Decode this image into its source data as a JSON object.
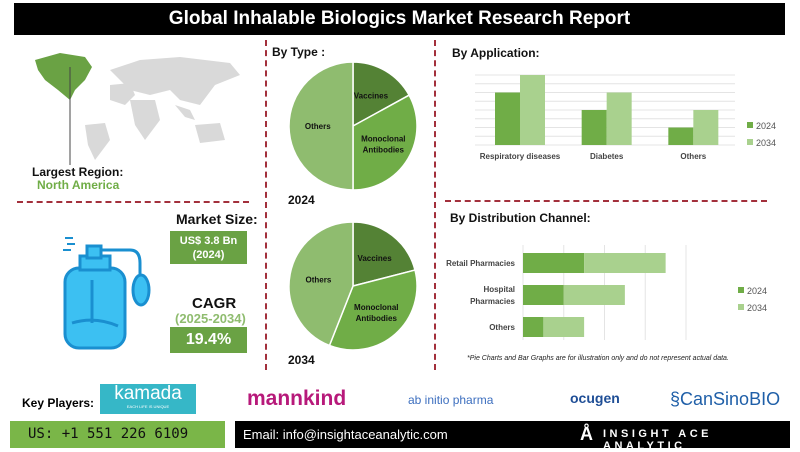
{
  "title": "Global Inhalable Biologics Market Research Report",
  "region": {
    "label": "Largest Region:",
    "value": "North America"
  },
  "market_size": {
    "label": "Market Size:",
    "value": "US$ 3.8 Bn",
    "year": "(2024)"
  },
  "cagr": {
    "label": "CAGR",
    "period": "(2025-2034)",
    "value": "19.4%"
  },
  "colors": {
    "dark": "#548235",
    "mid": "#70ad47",
    "light": "#a9d18e",
    "others_pie": "#8fbc6f",
    "accent_dash": "#a3303c",
    "map_highlight": "#6aa244",
    "icon_blue": "#1aa3e8"
  },
  "chart_data": [
    {
      "type": "pie",
      "title": "By Type :",
      "caption": "2024",
      "slices": [
        {
          "label": "Vaccines",
          "value": 17
        },
        {
          "label": "Monoclonal Antibodies",
          "value": 33
        },
        {
          "label": "Others",
          "value": 50
        }
      ]
    },
    {
      "type": "pie",
      "caption": "2034",
      "slices": [
        {
          "label": "Vaccines",
          "value": 21
        },
        {
          "label": "Monoclonal Antibodies",
          "value": 35
        },
        {
          "label": "Others",
          "value": 44
        }
      ]
    },
    {
      "type": "bar",
      "title": "By Application:",
      "categories": [
        "Respiratory diseases",
        "Diabetes",
        "Others"
      ],
      "series": [
        {
          "name": "2024",
          "values": [
            6,
            4,
            2
          ]
        },
        {
          "name": "2034",
          "values": [
            8,
            6,
            4
          ]
        }
      ],
      "ylim": [
        0,
        8
      ],
      "grid": true,
      "legend": "right"
    },
    {
      "type": "bar",
      "orientation": "horizontal",
      "stacked": true,
      "title": "By Distribution Channel:",
      "categories": [
        "Retail Pharmacies",
        "Hospital Pharmacies",
        "Others"
      ],
      "series": [
        {
          "name": "2024",
          "values": [
            1.5,
            1,
            0.5
          ]
        },
        {
          "name": "2034",
          "values": [
            2,
            1.5,
            1
          ]
        }
      ],
      "xlim": [
        0,
        4
      ],
      "grid": true,
      "legend": "right"
    }
  ],
  "disclaimer": "*Pie Charts and Bar Graphs are for illustration only and do not represent actual data.",
  "key_players": {
    "label": "Key Players:",
    "logos": [
      {
        "name": "kamada",
        "tagline": "EACH LIFE IS UNIQUE"
      },
      {
        "name": "mannkind"
      },
      {
        "name": "ab initio pharma"
      },
      {
        "name": "ocugen"
      },
      {
        "name": "CanSinoBIO"
      }
    ]
  },
  "footer": {
    "phone": "US: +1 551 226 6109",
    "email": "Email: info@insightaceanalytic.com",
    "brand": "INSIGHT ACE ANALYTIC"
  }
}
